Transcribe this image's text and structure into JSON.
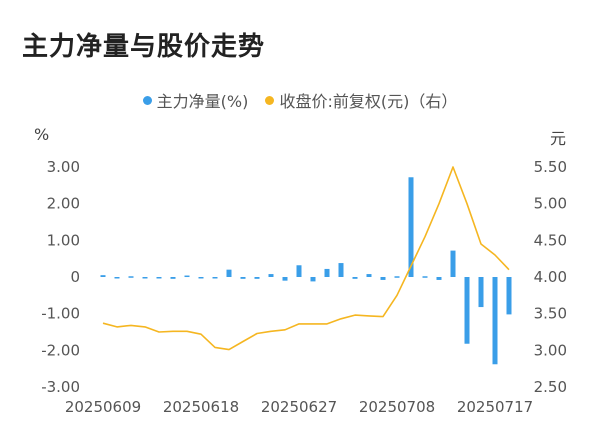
{
  "title": "主力净量与股价走势",
  "chart_data": {
    "type": "bar+line",
    "legend": [
      {
        "name": "主力净量(%)",
        "color": "#3a9ee8"
      },
      {
        "name": "收盘价:前复权(元)（右）",
        "color": "#f5b621"
      }
    ],
    "left_unit": "%",
    "right_unit": "元",
    "left_axis": {
      "ticks": [
        "3.00",
        "2.00",
        "1.00",
        "0",
        "-1.00",
        "-2.00",
        "-3.00"
      ],
      "range": [
        -3,
        3
      ]
    },
    "right_axis": {
      "ticks": [
        "5.50",
        "5.00",
        "4.50",
        "4.00",
        "3.50",
        "3.00",
        "2.50"
      ],
      "range": [
        2.5,
        5.5
      ]
    },
    "x_tick_labels": [
      "20250609",
      "20250618",
      "20250627",
      "20250708",
      "20250717"
    ],
    "x_tick_indices": [
      0,
      7,
      14,
      21,
      28
    ],
    "bar_series": {
      "name": "主力净量(%)",
      "values": [
        0.05,
        -0.02,
        0.02,
        -0.02,
        -0.02,
        -0.05,
        0.04,
        -0.03,
        -0.03,
        0.2,
        -0.05,
        -0.05,
        0.08,
        -0.1,
        0.32,
        -0.12,
        0.22,
        0.38,
        -0.05,
        0.08,
        -0.08,
        0.02,
        2.72,
        0.02,
        -0.08,
        0.72,
        -1.82,
        -0.82,
        -2.38,
        -1.02
      ]
    },
    "line_series": {
      "name": "收盘价:前复权(元)（右）",
      "values": [
        3.37,
        3.32,
        3.34,
        3.32,
        3.25,
        3.26,
        3.26,
        3.22,
        3.04,
        3.01,
        3.12,
        3.23,
        3.26,
        3.28,
        3.36,
        3.36,
        3.36,
        3.43,
        3.48,
        3.47,
        3.46,
        3.75,
        4.15,
        4.55,
        5.0,
        5.5,
        5.0,
        4.45,
        4.3,
        4.1
      ]
    }
  }
}
